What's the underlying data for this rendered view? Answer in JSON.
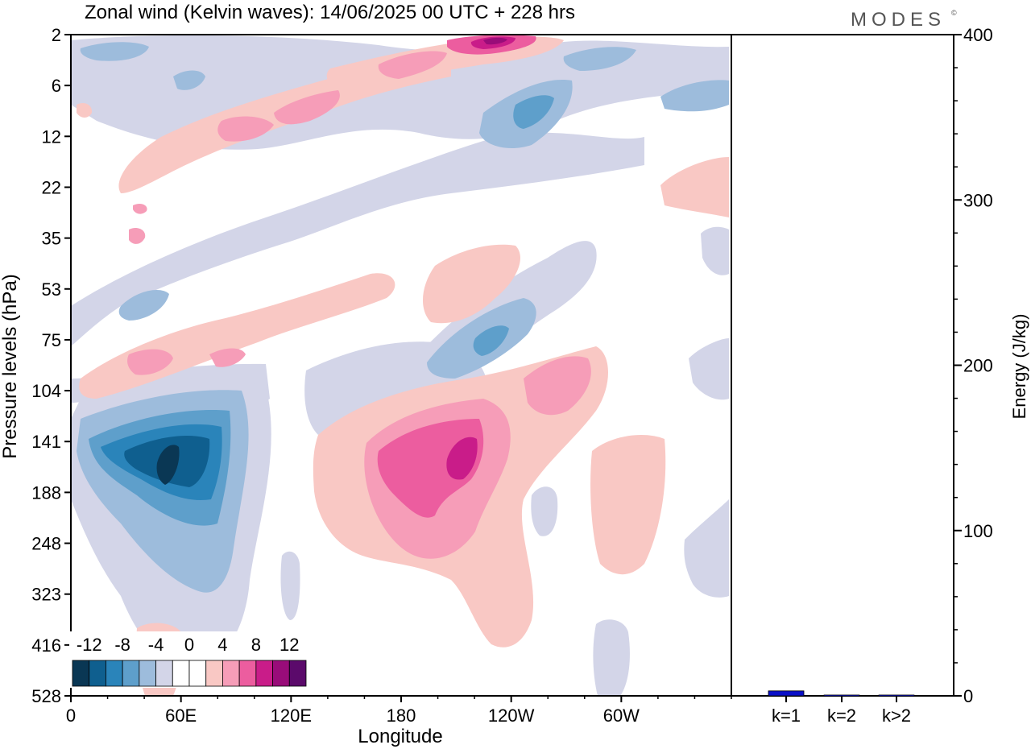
{
  "title": "Zonal wind (Kelvin waves):  14/06/2025  00 UTC  + 228 hrs",
  "brand": "MODES",
  "brand_mark": "©",
  "chart_data": [
    {
      "type": "heatmap",
      "xlabel": "Longitude",
      "ylabel": "Pressure levels (hPa)",
      "x_ticks": [
        "0",
        "60E",
        "120E",
        "180",
        "120W",
        "60W"
      ],
      "x_tick_values": [
        0,
        60,
        120,
        180,
        240,
        300
      ],
      "xlim": [
        0,
        360
      ],
      "y_ticks": [
        "2",
        "6",
        "12",
        "22",
        "35",
        "53",
        "75",
        "104",
        "141",
        "188",
        "248",
        "323",
        "416",
        "528"
      ],
      "colorbar": {
        "labels": [
          "-12",
          "-8",
          "-4",
          "0",
          "4",
          "8",
          "12"
        ],
        "colors": [
          "#0a3754",
          "#0f5f8f",
          "#2a84ba",
          "#5e9fcb",
          "#9dbcdc",
          "#d3d5e8",
          "#ffffff",
          "#ffffff",
          "#f9c8c4",
          "#f69db8",
          "#ec5d9f",
          "#c91c89",
          "#990c79",
          "#5b0a6b"
        ]
      },
      "features": [
        {
          "sign": "negative",
          "peak": -14,
          "lon": 45,
          "pressure": 160
        },
        {
          "sign": "positive",
          "peak": 12,
          "lon": 207,
          "pressure": 150
        },
        {
          "sign": "positive",
          "peak": 12,
          "lon": 225,
          "pressure": 2
        },
        {
          "sign": "negative",
          "peak": -8,
          "lon": 237,
          "pressure": 9
        },
        {
          "sign": "negative",
          "peak": -8,
          "lon": 232,
          "pressure": 78
        },
        {
          "sign": "positive",
          "peak": 7,
          "lon": 265,
          "pressure": 115
        }
      ]
    },
    {
      "type": "bar",
      "ylabel": "Energy (J/kg)",
      "categories": [
        "k=1",
        "k=2",
        "k>2"
      ],
      "values": [
        3,
        0.5,
        0.5
      ],
      "ylim": [
        0,
        400
      ],
      "y_ticks": [
        "0",
        "100",
        "200",
        "300",
        "400"
      ],
      "bar_color": "#0a10c8"
    }
  ]
}
